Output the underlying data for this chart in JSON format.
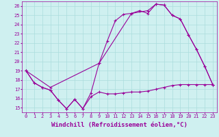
{
  "xlabel": "Windchill (Refroidissement éolien,°C)",
  "bg_color": "#cff0f0",
  "line_color": "#990099",
  "grid_color": "#aadddd",
  "xlim": [
    -0.5,
    23.5
  ],
  "ylim": [
    14.5,
    26.5
  ],
  "yticks": [
    15,
    16,
    17,
    18,
    19,
    20,
    21,
    22,
    23,
    24,
    25,
    26
  ],
  "xticks": [
    0,
    1,
    2,
    3,
    4,
    5,
    6,
    7,
    8,
    9,
    10,
    11,
    12,
    13,
    14,
    15,
    16,
    17,
    18,
    19,
    20,
    21,
    22,
    23
  ],
  "line1_x": [
    0,
    1,
    2,
    3,
    4,
    5,
    6,
    7,
    8,
    9,
    10,
    11,
    12,
    13,
    14,
    15,
    16,
    17,
    18,
    19,
    20,
    21,
    22,
    23
  ],
  "line1_y": [
    19,
    17.7,
    17.2,
    16.9,
    15.8,
    14.9,
    15.9,
    14.9,
    16.6,
    19.8,
    22.2,
    24.4,
    25.1,
    25.2,
    25.5,
    25.2,
    26.2,
    26.1,
    25.0,
    24.6,
    22.9,
    21.3,
    19.5,
    17.5
  ],
  "line2_x": [
    0,
    1,
    2,
    3,
    4,
    5,
    6,
    7,
    8,
    9,
    10,
    11,
    12,
    13,
    14,
    15,
    16,
    17,
    18,
    19,
    20,
    21,
    22,
    23
  ],
  "line2_y": [
    19,
    17.7,
    17.2,
    16.9,
    15.8,
    14.9,
    15.9,
    14.9,
    16.2,
    16.7,
    16.5,
    16.5,
    16.6,
    16.7,
    16.7,
    16.8,
    17.0,
    17.2,
    17.4,
    17.5,
    17.5,
    17.5,
    17.5,
    17.5
  ],
  "line3_x": [
    0,
    3,
    9,
    13,
    15,
    16,
    17,
    18,
    19,
    20,
    21,
    22,
    23
  ],
  "line3_y": [
    19,
    17.2,
    19.8,
    25.2,
    25.5,
    26.2,
    26.1,
    25.0,
    24.6,
    22.9,
    21.3,
    19.5,
    17.5
  ],
  "marker": "+",
  "markersize": 3,
  "linewidth": 0.8,
  "tick_label_fontsize": 5,
  "xlabel_fontsize": 6.5
}
